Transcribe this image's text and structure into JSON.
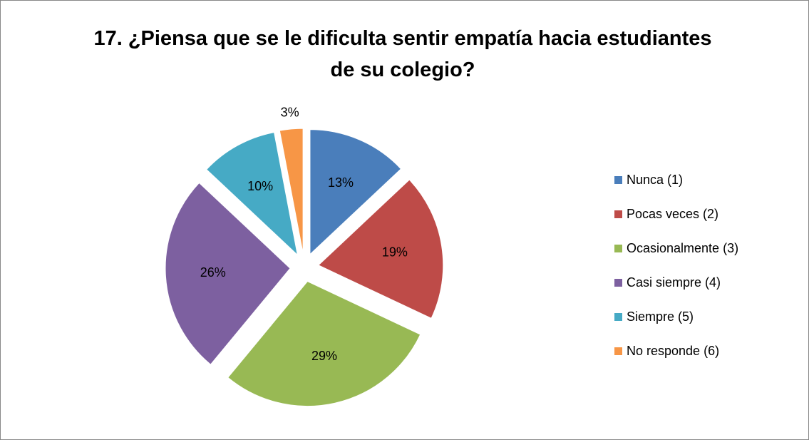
{
  "chart_data": {
    "type": "pie",
    "title": "17. ¿Piensa que se le dificulta sentir empatía hacia estudiantes de su colegio?",
    "categories": [
      "Nunca (1)",
      "Pocas veces (2)",
      "Ocasionalmente (3)",
      "Casi siempre (4)",
      "Siempre (5)",
      "No responde (6)"
    ],
    "values": [
      13,
      19,
      29,
      26,
      10,
      3
    ],
    "value_labels": [
      "13%",
      "19%",
      "29%",
      "26%",
      "10%",
      "3%"
    ],
    "colors": [
      "#4a7ebb",
      "#be4b48",
      "#98b954",
      "#7d60a0",
      "#46aac5",
      "#f79646"
    ],
    "legend": "right"
  }
}
